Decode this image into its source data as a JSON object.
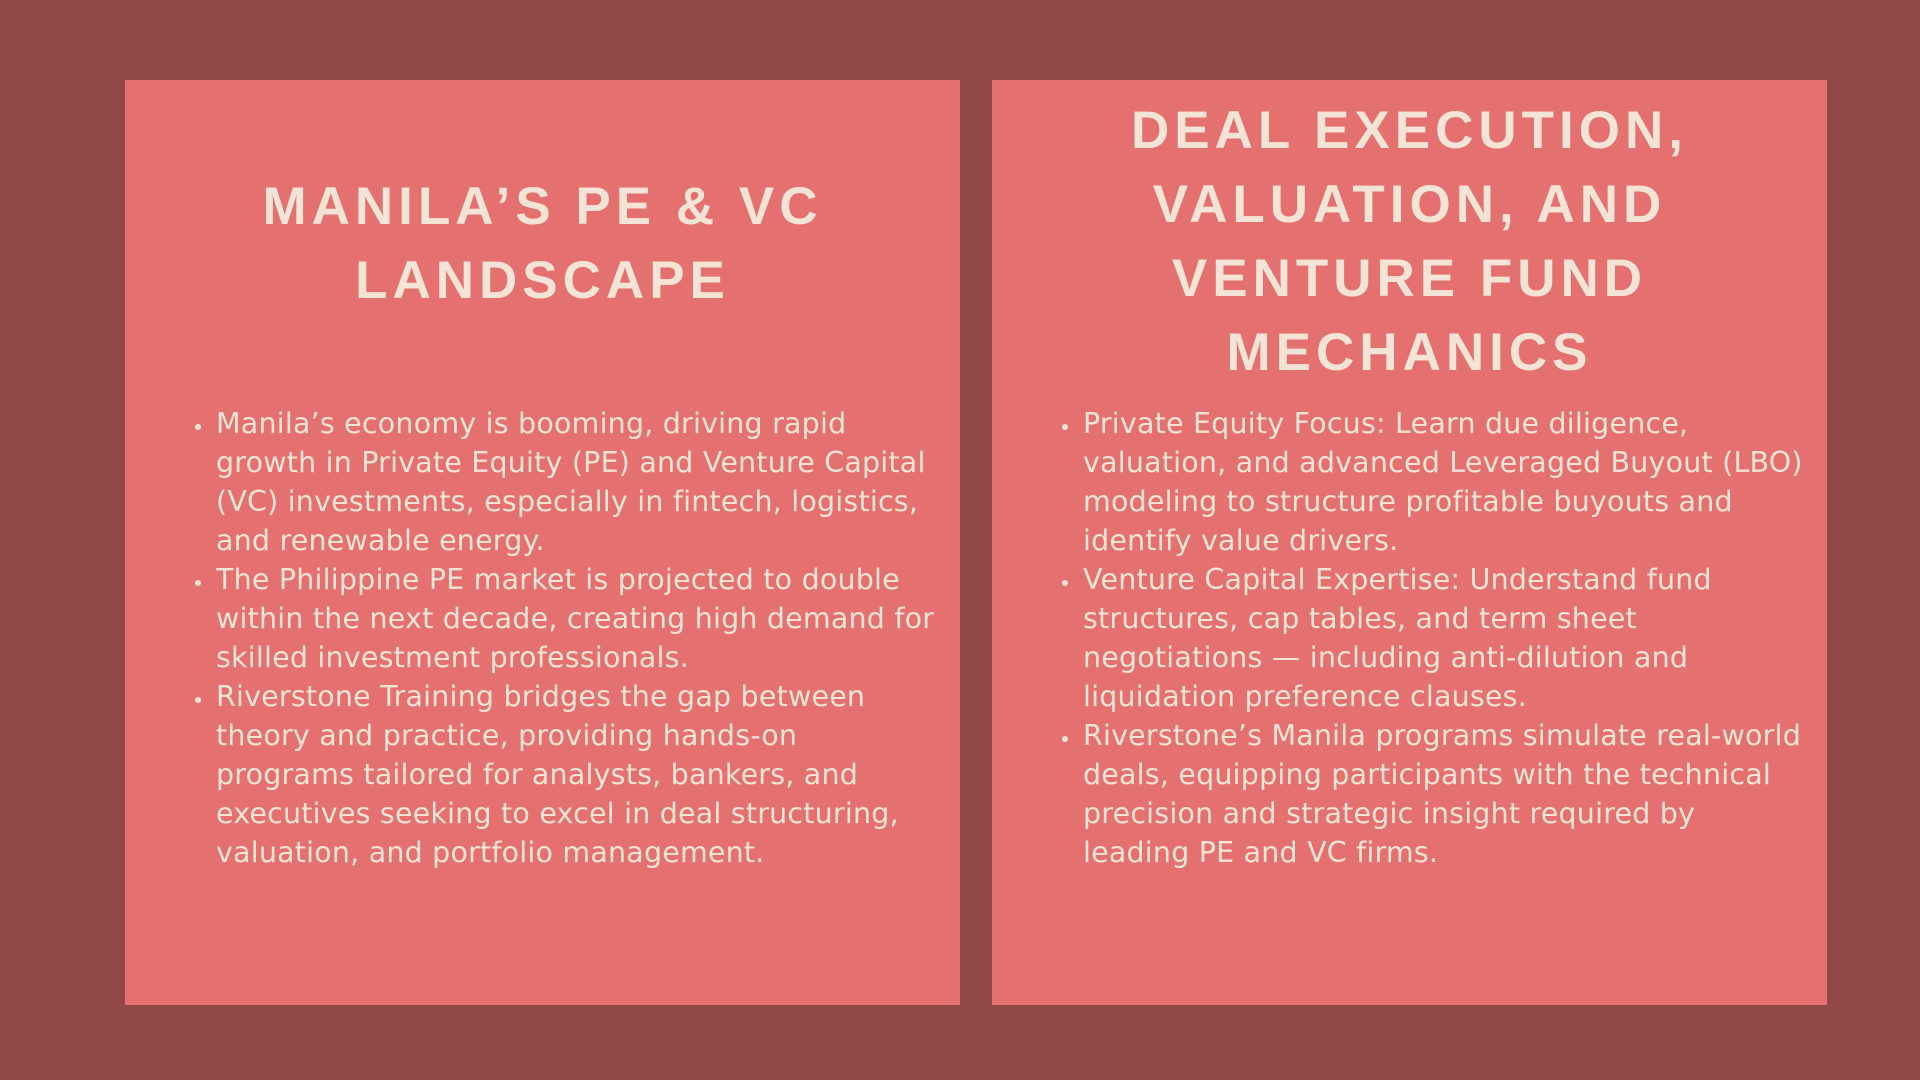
{
  "panels": [
    {
      "title": "MANILA’S PE & VC LANDSCAPE",
      "bullets": [
        "Manila’s economy is booming, driving rapid growth in Private Equity (PE) and Venture Capital (VC) investments, especially in fintech, logistics, and renewable energy.",
        "The Philippine PE market is projected to double within the next decade, creating high demand for skilled investment professionals.",
        "Riverstone Training bridges the gap between theory and practice, providing hands-on programs tailored for analysts, bankers, and executives seeking to excel in deal structuring, valuation, and portfolio management."
      ]
    },
    {
      "title": "DEAL EXECUTION, VALUATION, AND VENTURE FUND MECHANICS",
      "bullets": [
        "Private Equity Focus: Learn due diligence, valuation, and advanced Leveraged Buyout (LBO) modeling to structure profitable buyouts and identify value drivers.",
        "Venture Capital Expertise: Understand fund structures, cap tables, and term sheet negotiations — including anti-dilution and liquidation preference clauses.",
        "Riverstone’s Manila programs simulate real-world deals, equipping participants with the technical precision and strategic insight required by leading PE and VC firms."
      ]
    }
  ],
  "colors": {
    "background": "#934848",
    "panel": "#e57070",
    "text": "#f3e4d6"
  }
}
